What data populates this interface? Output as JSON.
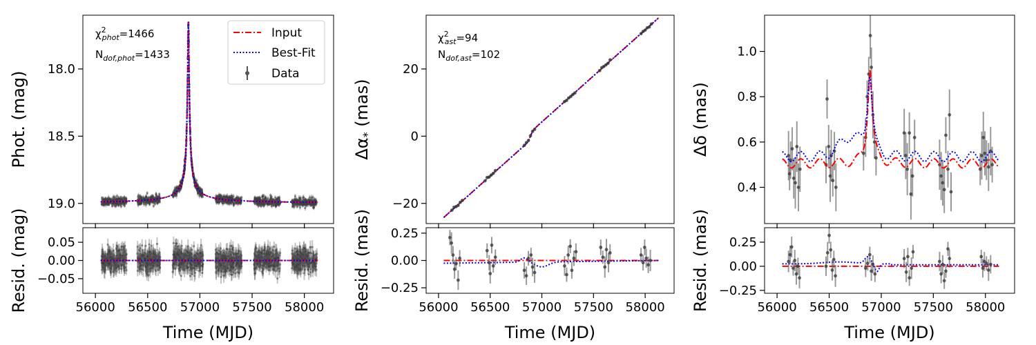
{
  "chart_data": [
    {
      "type": "scatter",
      "id": "phot",
      "ylabel": "Phot. (mag)",
      "xlim": [
        55880,
        58280
      ],
      "ylim": [
        19.15,
        17.6
      ],
      "yticks": [
        18.0,
        18.5,
        19.0
      ],
      "ytick_labels": [
        "18.0",
        "18.5",
        "19.0"
      ],
      "xticks": [
        56000,
        56500,
        57000,
        57500,
        58000
      ],
      "model": {
        "baseline": 19.0,
        "peak_time": 56890,
        "peak_value": 17.65,
        "width": 22
      },
      "series": [
        {
          "name": "Input",
          "color": "#ff0000",
          "style": "dashdot"
        },
        {
          "name": "Best-Fit",
          "color": "#0000ff",
          "style": "dotted"
        },
        {
          "name": "Data",
          "color": "#555555",
          "style": "errorbar"
        }
      ],
      "data_seasons": [
        [
          56060,
          56300
        ],
        [
          56400,
          56620
        ],
        [
          56740,
          57030
        ],
        [
          57150,
          57400
        ],
        [
          57520,
          57770
        ],
        [
          57880,
          58120
        ]
      ],
      "stats": {
        "chi2_label": "=1466",
        "chi2_sub": "phot",
        "ndof_label": "=1433",
        "ndof_sub": "dof,phot"
      }
    },
    {
      "type": "scatter",
      "id": "phot_resid",
      "ylabel": "Resid. (mag)",
      "xlabel": "Time (MJD)",
      "xlim": [
        55880,
        58280
      ],
      "ylim": [
        -0.09,
        0.09
      ],
      "yticks": [
        0.05,
        0.0,
        -0.05
      ],
      "ytick_labels": [
        "0.05",
        "0.00",
        "−0.05"
      ],
      "xticks": [
        56000,
        56500,
        57000,
        57500,
        58000
      ],
      "xtick_labels": [
        "56000",
        "56500",
        "57000",
        "57500",
        "58000"
      ]
    },
    {
      "type": "scatter",
      "id": "ra",
      "ylabel": "Δα* (mas)",
      "xlim": [
        55880,
        58280
      ],
      "ylim": [
        -26,
        36
      ],
      "yticks": [
        20,
        0,
        -20
      ],
      "ytick_labels": [
        "20",
        "0",
        "−20"
      ],
      "xticks": [
        56000,
        56500,
        57000,
        57500,
        58000
      ],
      "model": {
        "t0": 56050,
        "t1": 58130,
        "y0": -23,
        "y1": 34
      },
      "points_x": [
        56130,
        56150,
        56170,
        56190,
        56210,
        56230,
        56450,
        56470,
        56490,
        56510,
        56530,
        56550,
        56830,
        56850,
        56870,
        56890,
        56910,
        56930,
        57220,
        57240,
        57260,
        57280,
        57300,
        57320,
        57560,
        57580,
        57600,
        57620,
        57640,
        57660,
        57960,
        57980,
        58000,
        58020,
        58040,
        58060
      ],
      "stats": {
        "chi2_label": "=94",
        "chi2_sub": "ast",
        "ndof_label": "=102",
        "ndof_sub": "dof,ast"
      }
    },
    {
      "type": "scatter",
      "id": "ra_resid",
      "ylabel": "Resid. (mas)",
      "xlabel": "Time (MJD)",
      "xlim": [
        55880,
        58280
      ],
      "ylim": [
        -0.3,
        0.3
      ],
      "yticks": [
        0.25,
        0.0,
        -0.25
      ],
      "ytick_labels": [
        "0.25",
        "0.00",
        "−0.25"
      ],
      "xticks": [
        56000,
        56500,
        57000,
        57500,
        58000
      ],
      "xtick_labels": [
        "56000",
        "56500",
        "57000",
        "57500",
        "58000"
      ],
      "points": [
        [
          56110,
          0.21
        ],
        [
          56125,
          0.16
        ],
        [
          56140,
          0.05
        ],
        [
          56155,
          -0.08
        ],
        [
          56170,
          -0.03
        ],
        [
          56190,
          -0.18
        ],
        [
          56205,
          0.02
        ],
        [
          56470,
          0.09
        ],
        [
          56490,
          -0.02
        ],
        [
          56500,
          -0.12
        ],
        [
          56515,
          0.14
        ],
        [
          56530,
          -0.05
        ],
        [
          56550,
          0.03
        ],
        [
          56830,
          -0.09
        ],
        [
          56850,
          -0.14
        ],
        [
          56870,
          0.02
        ],
        [
          56895,
          0.05
        ],
        [
          56910,
          -0.06
        ],
        [
          56930,
          -0.11
        ],
        [
          57220,
          -0.05
        ],
        [
          57240,
          -0.13
        ],
        [
          57255,
          0.05
        ],
        [
          57275,
          0.13
        ],
        [
          57290,
          -0.09
        ],
        [
          57310,
          0.02
        ],
        [
          57330,
          0.08
        ],
        [
          57570,
          0.12
        ],
        [
          57590,
          0.03
        ],
        [
          57610,
          -0.06
        ],
        [
          57625,
          0.1
        ],
        [
          57645,
          -0.02
        ],
        [
          57660,
          0.07
        ],
        [
          57960,
          0.05
        ],
        [
          57980,
          -0.02
        ],
        [
          57995,
          0.12
        ],
        [
          58010,
          0.02
        ],
        [
          58030,
          -0.04
        ],
        [
          58050,
          0.0
        ]
      ]
    },
    {
      "type": "scatter",
      "id": "dec",
      "ylabel": "Δδ (mas)",
      "xlim": [
        55880,
        58280
      ],
      "ylim": [
        0.24,
        1.16
      ],
      "yticks": [
        1.0,
        0.8,
        0.6,
        0.4
      ],
      "ytick_labels": [
        "1.0",
        "0.8",
        "0.6",
        "0.4"
      ],
      "xticks": [
        56000,
        56500,
        57000,
        57500,
        58000
      ],
      "points": [
        [
          56110,
          0.54
        ],
        [
          56120,
          0.46
        ],
        [
          56130,
          0.52
        ],
        [
          56145,
          0.57
        ],
        [
          56160,
          0.44
        ],
        [
          56175,
          0.42
        ],
        [
          56190,
          0.58
        ],
        [
          56205,
          0.4
        ],
        [
          56220,
          0.48
        ],
        [
          56470,
          0.5
        ],
        [
          56480,
          0.79
        ],
        [
          56495,
          0.58
        ],
        [
          56510,
          0.45
        ],
        [
          56520,
          0.54
        ],
        [
          56535,
          0.43
        ],
        [
          56550,
          0.56
        ],
        [
          56565,
          0.4
        ],
        [
          56830,
          0.55
        ],
        [
          56850,
          0.62
        ],
        [
          56865,
          0.8
        ],
        [
          56880,
          0.9
        ],
        [
          56895,
          1.07
        ],
        [
          56905,
          0.93
        ],
        [
          56920,
          0.72
        ],
        [
          56935,
          0.6
        ],
        [
          56950,
          0.53
        ],
        [
          57220,
          0.64
        ],
        [
          57235,
          0.54
        ],
        [
          57250,
          0.48
        ],
        [
          57270,
          0.64
        ],
        [
          57285,
          0.37
        ],
        [
          57300,
          0.45
        ],
        [
          57320,
          0.62
        ],
        [
          57560,
          0.5
        ],
        [
          57575,
          0.45
        ],
        [
          57590,
          0.42
        ],
        [
          57605,
          0.39
        ],
        [
          57620,
          0.63
        ],
        [
          57640,
          0.48
        ],
        [
          57655,
          0.72
        ],
        [
          57670,
          0.38
        ],
        [
          57950,
          0.48
        ],
        [
          57965,
          0.54
        ],
        [
          57980,
          0.62
        ],
        [
          57995,
          0.55
        ],
        [
          58010,
          0.52
        ],
        [
          58030,
          0.49
        ],
        [
          58050,
          0.56
        ],
        [
          58065,
          0.5
        ]
      ]
    },
    {
      "type": "scatter",
      "id": "dec_resid",
      "ylabel": "Resid. (mas)",
      "xlabel": "Time (MJD)",
      "xlim": [
        55880,
        58280
      ],
      "ylim": [
        -0.28,
        0.4
      ],
      "yticks": [
        0.25,
        0.0,
        -0.25
      ],
      "ytick_labels": [
        "0.25",
        "0.00",
        "−0.25"
      ],
      "xticks": [
        56000,
        56500,
        57000,
        57500,
        58000
      ],
      "xtick_labels": [
        "56000",
        "56500",
        "57000",
        "57500",
        "58000"
      ],
      "points": [
        [
          56110,
          0.05
        ],
        [
          56125,
          0.12
        ],
        [
          56140,
          0.2
        ],
        [
          56155,
          -0.02
        ],
        [
          56170,
          0.06
        ],
        [
          56185,
          -0.08
        ],
        [
          56200,
          0.0
        ],
        [
          56215,
          -0.12
        ],
        [
          56470,
          0.0
        ],
        [
          56485,
          0.14
        ],
        [
          56500,
          0.32
        ],
        [
          56515,
          0.17
        ],
        [
          56530,
          -0.04
        ],
        [
          56545,
          0.07
        ],
        [
          56560,
          -0.1
        ],
        [
          56850,
          -0.02
        ],
        [
          56870,
          0.03
        ],
        [
          56890,
          0.12
        ],
        [
          56905,
          -0.05
        ],
        [
          56920,
          0.02
        ],
        [
          56940,
          -0.08
        ],
        [
          57220,
          0.08
        ],
        [
          57240,
          -0.06
        ],
        [
          57255,
          0.1
        ],
        [
          57270,
          -0.12
        ],
        [
          57290,
          -0.02
        ],
        [
          57305,
          0.15
        ],
        [
          57560,
          0.05
        ],
        [
          57575,
          -0.08
        ],
        [
          57590,
          0.02
        ],
        [
          57605,
          -0.15
        ],
        [
          57620,
          -0.05
        ],
        [
          57640,
          0.18
        ],
        [
          57655,
          0.08
        ],
        [
          57960,
          0.1
        ],
        [
          57975,
          -0.02
        ],
        [
          57990,
          0.05
        ],
        [
          58010,
          0.03
        ],
        [
          58030,
          -0.04
        ],
        [
          58050,
          0.02
        ]
      ]
    }
  ],
  "legend": {
    "input": "Input",
    "bestfit": "Best-Fit",
    "data": "Data"
  },
  "common": {
    "xlabel": "Time (MJD)",
    "chi_symbol": "χ",
    "n_symbol": "N"
  }
}
